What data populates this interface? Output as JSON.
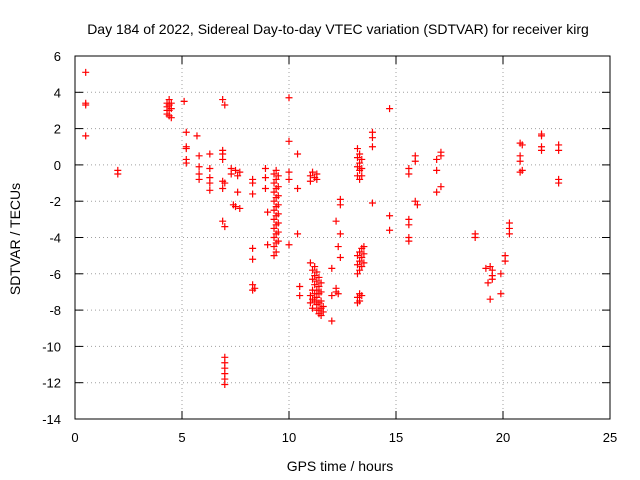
{
  "chart_data": {
    "type": "scatter",
    "title": "Day 184 of 2022, Sidereal Day-to-day VTEC variation (SDTVAR) for receiver kirg",
    "xlabel": "GPS time / hours",
    "ylabel": "SDTVAR / TECUs",
    "xlim": [
      0,
      25
    ],
    "ylim": [
      -14,
      6
    ],
    "xticks": [
      0,
      5,
      10,
      15,
      20,
      25
    ],
    "yticks": [
      -14,
      -12,
      -10,
      -8,
      -6,
      -4,
      -2,
      0,
      2,
      4,
      6
    ],
    "grid": true,
    "marker": "+",
    "color": "#ff0000",
    "series": [
      {
        "name": "SDTVAR",
        "points": [
          [
            0.5,
            5.1
          ],
          [
            0.5,
            3.4
          ],
          [
            0.5,
            3.3
          ],
          [
            0.5,
            1.6
          ],
          [
            2.0,
            -0.3
          ],
          [
            2.0,
            -0.5
          ],
          [
            4.3,
            3.4
          ],
          [
            4.3,
            3.2
          ],
          [
            4.3,
            3.0
          ],
          [
            4.3,
            2.8
          ],
          [
            4.4,
            3.6
          ],
          [
            4.4,
            3.3
          ],
          [
            4.4,
            3.0
          ],
          [
            4.4,
            2.7
          ],
          [
            4.5,
            3.4
          ],
          [
            4.5,
            3.1
          ],
          [
            4.5,
            2.6
          ],
          [
            5.1,
            3.5
          ],
          [
            5.2,
            1.8
          ],
          [
            5.2,
            1.0
          ],
          [
            5.2,
            0.9
          ],
          [
            5.2,
            0.3
          ],
          [
            5.2,
            0.1
          ],
          [
            5.7,
            1.6
          ],
          [
            5.8,
            0.5
          ],
          [
            5.8,
            -0.1
          ],
          [
            5.8,
            -0.5
          ],
          [
            5.8,
            -0.8
          ],
          [
            6.3,
            0.6
          ],
          [
            6.3,
            -0.2
          ],
          [
            6.3,
            -0.7
          ],
          [
            6.3,
            -1.0
          ],
          [
            6.3,
            -1.4
          ],
          [
            6.9,
            3.6
          ],
          [
            6.9,
            0.8
          ],
          [
            6.9,
            0.6
          ],
          [
            6.9,
            0.3
          ],
          [
            6.9,
            -0.9
          ],
          [
            6.9,
            -1.3
          ],
          [
            6.9,
            -3.1
          ],
          [
            7.0,
            3.3
          ],
          [
            7.0,
            -1.0
          ],
          [
            7.0,
            -3.4
          ],
          [
            7.0,
            -10.6
          ],
          [
            7.0,
            -10.9
          ],
          [
            7.0,
            -11.2
          ],
          [
            7.0,
            -11.5
          ],
          [
            7.0,
            -11.8
          ],
          [
            7.0,
            -12.1
          ],
          [
            7.3,
            -0.2
          ],
          [
            7.3,
            -0.5
          ],
          [
            7.4,
            -2.2
          ],
          [
            7.5,
            -0.3
          ],
          [
            7.5,
            -2.3
          ],
          [
            7.6,
            -0.6
          ],
          [
            7.6,
            -1.5
          ],
          [
            7.7,
            -2.4
          ],
          [
            7.7,
            -0.4
          ],
          [
            8.3,
            -0.8
          ],
          [
            8.3,
            -1.0
          ],
          [
            8.3,
            -1.6
          ],
          [
            8.3,
            -4.6
          ],
          [
            8.3,
            -5.2
          ],
          [
            8.3,
            -6.6
          ],
          [
            8.3,
            -6.9
          ],
          [
            8.4,
            -6.8
          ],
          [
            8.9,
            -0.2
          ],
          [
            8.9,
            -0.7
          ],
          [
            8.9,
            -1.3
          ],
          [
            9.0,
            -2.6
          ],
          [
            9.0,
            -4.4
          ],
          [
            9.3,
            -0.5
          ],
          [
            9.3,
            -1.0
          ],
          [
            9.3,
            -1.5
          ],
          [
            9.3,
            -2.0
          ],
          [
            9.3,
            -2.5
          ],
          [
            9.3,
            -3.0
          ],
          [
            9.3,
            -3.5
          ],
          [
            9.3,
            -4.0
          ],
          [
            9.3,
            -4.5
          ],
          [
            9.3,
            -5.0
          ],
          [
            9.4,
            -0.3
          ],
          [
            9.4,
            -0.8
          ],
          [
            9.4,
            -1.3
          ],
          [
            9.4,
            -1.8
          ],
          [
            9.4,
            -2.3
          ],
          [
            9.4,
            -2.8
          ],
          [
            9.4,
            -3.3
          ],
          [
            9.4,
            -3.8
          ],
          [
            9.4,
            -4.3
          ],
          [
            9.4,
            -4.8
          ],
          [
            9.5,
            -0.6
          ],
          [
            9.5,
            -1.2
          ],
          [
            9.5,
            -1.7
          ],
          [
            9.5,
            -2.2
          ],
          [
            9.5,
            -2.7
          ],
          [
            9.5,
            -3.2
          ],
          [
            9.5,
            -3.7
          ],
          [
            9.5,
            -4.2
          ],
          [
            10.0,
            3.7
          ],
          [
            10.0,
            1.3
          ],
          [
            10.0,
            -0.4
          ],
          [
            10.0,
            -0.8
          ],
          [
            10.0,
            -4.4
          ],
          [
            10.4,
            0.6
          ],
          [
            10.4,
            -1.3
          ],
          [
            10.4,
            -3.8
          ],
          [
            10.5,
            -6.7
          ],
          [
            10.5,
            -7.2
          ],
          [
            11.0,
            -0.6
          ],
          [
            11.0,
            -0.9
          ],
          [
            11.1,
            -0.4
          ],
          [
            11.2,
            -0.7
          ],
          [
            11.3,
            -0.5
          ],
          [
            11.3,
            -0.8
          ],
          [
            11.0,
            -5.4
          ],
          [
            11.1,
            -5.8
          ],
          [
            11.1,
            -6.3
          ],
          [
            11.1,
            -6.9
          ],
          [
            11.2,
            -5.6
          ],
          [
            11.2,
            -6.1
          ],
          [
            11.2,
            -6.6
          ],
          [
            11.2,
            -7.1
          ],
          [
            11.2,
            -7.5
          ],
          [
            11.3,
            -5.9
          ],
          [
            11.3,
            -6.4
          ],
          [
            11.3,
            -6.9
          ],
          [
            11.3,
            -7.3
          ],
          [
            11.3,
            -7.7
          ],
          [
            11.3,
            -8.0
          ],
          [
            11.4,
            -6.2
          ],
          [
            11.4,
            -6.7
          ],
          [
            11.4,
            -7.1
          ],
          [
            11.4,
            -7.6
          ],
          [
            11.4,
            -8.0
          ],
          [
            11.4,
            -8.2
          ],
          [
            11.5,
            -6.5
          ],
          [
            11.5,
            -7.0
          ],
          [
            11.5,
            -7.5
          ],
          [
            11.5,
            -7.9
          ],
          [
            11.5,
            -8.3
          ],
          [
            11.6,
            -7.8
          ],
          [
            11.6,
            -8.1
          ],
          [
            11.0,
            -7.2
          ],
          [
            11.0,
            -7.6
          ],
          [
            11.1,
            -7.4
          ],
          [
            11.1,
            -7.9
          ],
          [
            12.0,
            -5.7
          ],
          [
            12.0,
            -7.2
          ],
          [
            12.0,
            -8.6
          ],
          [
            12.2,
            -3.1
          ],
          [
            12.2,
            -6.8
          ],
          [
            12.2,
            -7.0
          ],
          [
            12.3,
            -4.5
          ],
          [
            12.3,
            -7.1
          ],
          [
            12.4,
            -1.9
          ],
          [
            12.4,
            -2.2
          ],
          [
            12.4,
            -3.8
          ],
          [
            12.4,
            -5.1
          ],
          [
            13.2,
            0.9
          ],
          [
            13.2,
            0.4
          ],
          [
            13.2,
            -0.1
          ],
          [
            13.2,
            -0.6
          ],
          [
            13.3,
            0.6
          ],
          [
            13.3,
            0.1
          ],
          [
            13.3,
            -0.3
          ],
          [
            13.3,
            -0.8
          ],
          [
            13.4,
            0.3
          ],
          [
            13.4,
            -0.2
          ],
          [
            13.4,
            -0.6
          ],
          [
            13.2,
            -5.0
          ],
          [
            13.2,
            -5.5
          ],
          [
            13.2,
            -6.0
          ],
          [
            13.2,
            -7.3
          ],
          [
            13.2,
            -7.6
          ],
          [
            13.3,
            -4.8
          ],
          [
            13.3,
            -5.3
          ],
          [
            13.3,
            -5.8
          ],
          [
            13.3,
            -7.1
          ],
          [
            13.3,
            -7.5
          ],
          [
            13.4,
            -4.6
          ],
          [
            13.4,
            -5.1
          ],
          [
            13.4,
            -5.6
          ],
          [
            13.4,
            -7.2
          ],
          [
            13.5,
            -4.5
          ],
          [
            13.5,
            -4.9
          ],
          [
            13.5,
            -5.4
          ],
          [
            13.9,
            1.8
          ],
          [
            13.9,
            1.5
          ],
          [
            13.9,
            1.0
          ],
          [
            13.9,
            -2.1
          ],
          [
            14.7,
            3.1
          ],
          [
            14.7,
            -2.8
          ],
          [
            14.7,
            -3.6
          ],
          [
            15.6,
            -0.2
          ],
          [
            15.6,
            -0.5
          ],
          [
            15.6,
            -3.0
          ],
          [
            15.6,
            -3.3
          ],
          [
            15.6,
            -4.0
          ],
          [
            15.6,
            -4.2
          ],
          [
            15.9,
            0.5
          ],
          [
            15.9,
            0.2
          ],
          [
            15.9,
            -2.0
          ],
          [
            16.0,
            -2.2
          ],
          [
            16.9,
            0.3
          ],
          [
            16.9,
            -0.3
          ],
          [
            16.9,
            -1.5
          ],
          [
            17.1,
            0.7
          ],
          [
            17.1,
            0.5
          ],
          [
            17.1,
            -1.2
          ],
          [
            18.7,
            -3.8
          ],
          [
            18.7,
            -4.0
          ],
          [
            19.2,
            -5.7
          ],
          [
            19.3,
            -6.5
          ],
          [
            19.4,
            -5.6
          ],
          [
            19.4,
            -7.4
          ],
          [
            19.5,
            -5.8
          ],
          [
            19.5,
            -6.1
          ],
          [
            19.5,
            -6.3
          ],
          [
            19.9,
            -6.0
          ],
          [
            19.9,
            -7.1
          ],
          [
            20.1,
            -5.0
          ],
          [
            20.1,
            -5.3
          ],
          [
            20.3,
            -3.2
          ],
          [
            20.3,
            -3.5
          ],
          [
            20.3,
            -3.8
          ],
          [
            20.8,
            1.2
          ],
          [
            20.8,
            0.5
          ],
          [
            20.8,
            0.2
          ],
          [
            20.8,
            -0.4
          ],
          [
            20.9,
            1.1
          ],
          [
            20.9,
            -0.3
          ],
          [
            21.8,
            1.7
          ],
          [
            21.8,
            1.6
          ],
          [
            21.8,
            1.0
          ],
          [
            21.8,
            0.8
          ],
          [
            22.6,
            1.1
          ],
          [
            22.6,
            0.8
          ],
          [
            22.6,
            -0.8
          ],
          [
            22.6,
            -1.0
          ]
        ]
      }
    ]
  }
}
